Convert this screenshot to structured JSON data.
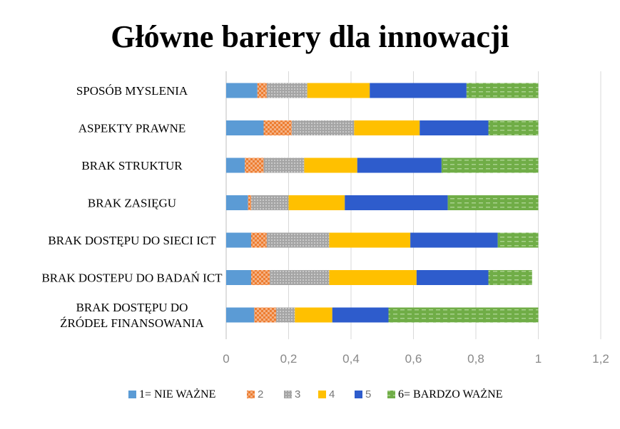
{
  "chart_data": {
    "type": "bar",
    "orientation": "horizontal",
    "stacked": true,
    "title": "Główne bariery dla innowacji",
    "categories": [
      "SPOSÓB MYSLENIA",
      "ASPEKTY PRAWNE",
      "BRAK STRUKTUR",
      "BRAK ZASIĘGU",
      "BRAK DOSTĘPU DO SIECI ICT",
      "BRAK DOSTEPU DO BADAŃ ICT",
      "BRAK DOSTĘPU DO ŹRÓDEŁ FINANSOWANIA"
    ],
    "category_lines": [
      [
        "SPOSÓB MYSLENIA"
      ],
      [
        "ASPEKTY PRAWNE"
      ],
      [
        "BRAK STRUKTUR"
      ],
      [
        "BRAK ZASIĘGU"
      ],
      [
        "BRAK DOSTĘPU DO SIECI ICT"
      ],
      [
        "BRAK DOSTEPU DO BADAŃ ICT"
      ],
      [
        "BRAK DOSTĘPU DO",
        "ŹRÓDEŁ FINANSOWANIA"
      ]
    ],
    "series": [
      {
        "name": "1= NIE WAŻNE",
        "color": "#5b9bd5",
        "pattern": "solid",
        "values": [
          0.1,
          0.12,
          0.06,
          0.07,
          0.08,
          0.08,
          0.09
        ]
      },
      {
        "name": "2",
        "color": "#ed7d31",
        "pattern": "check",
        "values": [
          0.03,
          0.09,
          0.06,
          0.01,
          0.05,
          0.06,
          0.07
        ]
      },
      {
        "name": "3",
        "color": "#a5a5a5",
        "pattern": "dots",
        "values": [
          0.13,
          0.2,
          0.13,
          0.12,
          0.2,
          0.19,
          0.06
        ]
      },
      {
        "name": "4",
        "color": "#ffc000",
        "pattern": "solid",
        "values": [
          0.2,
          0.21,
          0.17,
          0.18,
          0.26,
          0.28,
          0.12
        ]
      },
      {
        "name": "5",
        "color": "#2e5ccc",
        "pattern": "solid",
        "values": [
          0.31,
          0.22,
          0.27,
          0.33,
          0.28,
          0.23,
          0.18
        ]
      },
      {
        "name": "6= BARDZO WAŻNE",
        "color": "#70ad47",
        "pattern": "dash",
        "values": [
          0.23,
          0.16,
          0.31,
          0.29,
          0.13,
          0.14,
          0.48
        ]
      }
    ],
    "xlim": [
      0,
      1.2
    ],
    "xticks": [
      "0",
      "0,2",
      "0,4",
      "0,6",
      "0,8",
      "1",
      "1,2"
    ],
    "xtick_values": [
      0,
      0.2,
      0.4,
      0.6,
      0.8,
      1.0,
      1.2
    ],
    "grid": true,
    "legend_position": "bottom",
    "legend_fonts": [
      "serif",
      "sans",
      "sans",
      "sans",
      "sans",
      "serif"
    ]
  }
}
